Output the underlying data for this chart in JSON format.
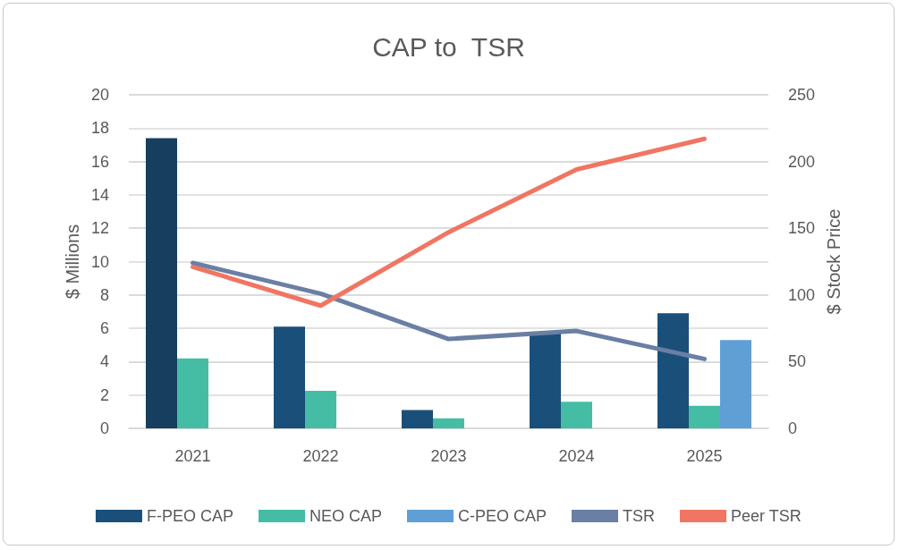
{
  "chart_data": {
    "type": "bar",
    "title": "CAP to  TSR",
    "ylabel": "$ Millions",
    "y2label": "$ Stock Price",
    "categories": [
      "2021",
      "2022",
      "2023",
      "2024",
      "2025"
    ],
    "series": [
      {
        "name": "F-PEO CAP",
        "color": "#1a4f7a",
        "colors": [
          "#163f5f",
          "#1a4f7a",
          "#1a4f7a",
          "#1a4f7a",
          "#1a4f7a"
        ],
        "values": [
          17.4,
          6.1,
          1.1,
          5.7,
          6.9
        ]
      },
      {
        "name": "NEO CAP",
        "color": "#45bda5",
        "values": [
          4.2,
          2.25,
          0.6,
          1.6,
          1.35
        ]
      },
      {
        "name": "C-PEO CAP",
        "color": "#5f9fd6",
        "values": [
          null,
          null,
          null,
          null,
          5.3
        ]
      },
      {
        "name": "TSR",
        "type": "line",
        "axis": "y2",
        "color": "#6a7fa3",
        "values": [
          124,
          101,
          67,
          73,
          52
        ]
      },
      {
        "name": "Peer TSR",
        "type": "line",
        "axis": "y2",
        "color": "#f07562",
        "values": [
          121,
          92,
          147,
          194,
          217
        ]
      }
    ],
    "ylim": [
      0,
      20
    ],
    "yticks": [
      0,
      2,
      4,
      6,
      8,
      10,
      12,
      14,
      16,
      18,
      20
    ],
    "y2lim": [
      0,
      250
    ],
    "y2ticks": [
      0,
      50,
      100,
      150,
      200,
      250
    ],
    "grid": "y",
    "legend": "bottom",
    "marker": "none",
    "line_style": "solid"
  }
}
